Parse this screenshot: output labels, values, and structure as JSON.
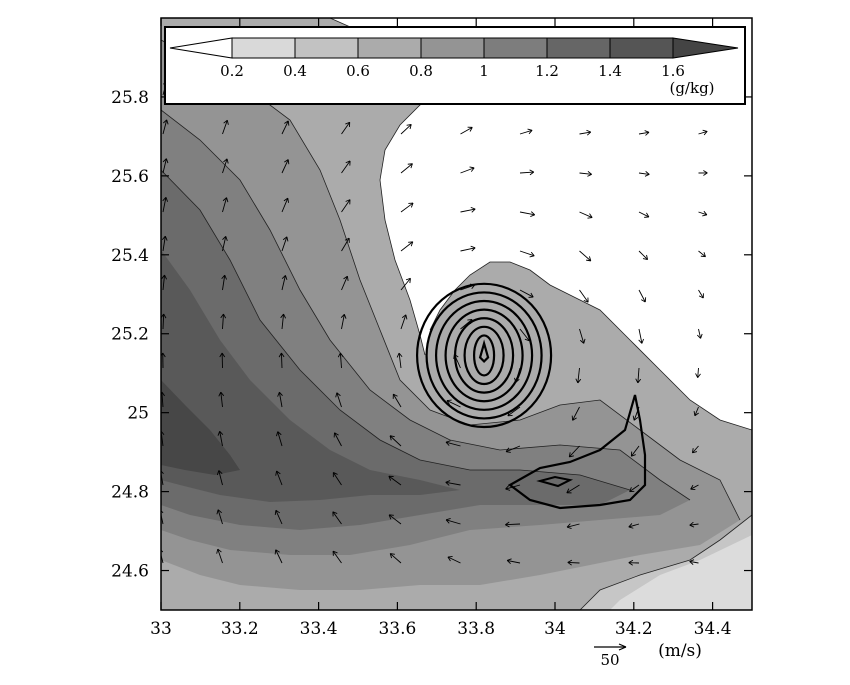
{
  "chart_data": {
    "type": "contour",
    "xlim": [
      33.0,
      34.5
    ],
    "ylim": [
      24.5,
      26.0
    ],
    "x_ticks": [
      "33",
      "33.2",
      "33.4",
      "33.6",
      "33.8",
      "34",
      "34.2",
      "34.4"
    ],
    "y_ticks": [
      "24.6",
      "24.8",
      "25",
      "25.2",
      "25.4",
      "25.6",
      "25.8"
    ],
    "colorbar": {
      "levels": [
        "0.2",
        "0.4",
        "0.6",
        "0.8",
        "1",
        "1.2",
        "1.4",
        "1.6"
      ],
      "units": "(g/kg)",
      "colors": [
        "#ffffff",
        "#d9d9d9",
        "#c2c2c2",
        "#ababab",
        "#949494",
        "#7d7d7d",
        "#666666",
        "#555555",
        "#444444"
      ]
    },
    "vector_reference": {
      "value": "50",
      "units": "(m/s)"
    },
    "vortex_center": {
      "lon": 33.82,
      "lat": 25.14
    },
    "line_contour_rings": 7
  }
}
